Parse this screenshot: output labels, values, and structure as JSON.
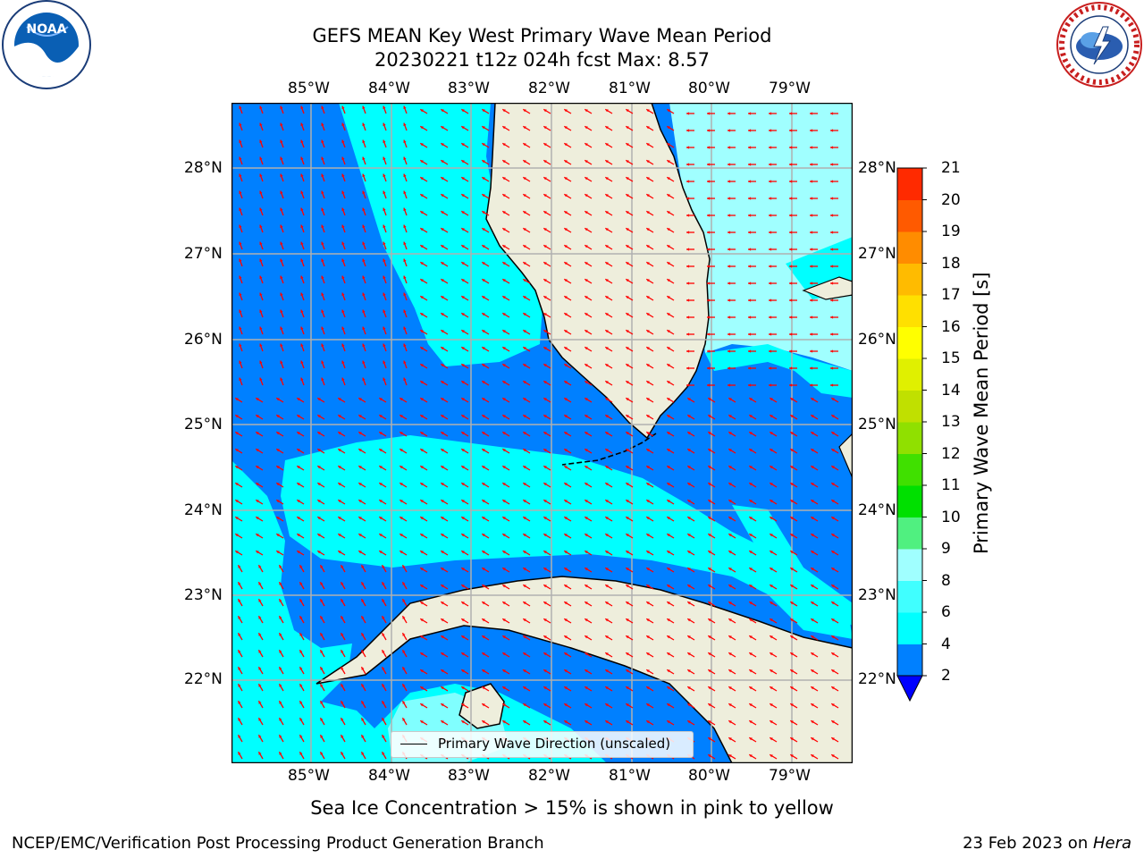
{
  "header": {
    "title_line1": "GEFS MEAN Key West Primary Wave Mean Period",
    "title_line2": "20230221 t12z 024h fcst   Max: 8.57"
  },
  "logos": {
    "noaa_text": "NOAA",
    "noaa_ring_text": "NATIONAL OCEANIC AND ATMOSPHERIC ADMINISTRATION · U.S. DEPARTMENT OF COMMERCE",
    "nws_ring_text": "NATIONAL WEATHER SERVICE"
  },
  "map": {
    "lon_ticks": [
      "85°W",
      "84°W",
      "83°W",
      "82°W",
      "81°W",
      "80°W",
      "79°W"
    ],
    "lat_ticks": [
      "28°N",
      "27°N",
      "26°N",
      "25°N",
      "24°N",
      "23°N",
      "22°N"
    ],
    "legend_label": "Primary Wave Direction (unscaled)",
    "colors": {
      "land": "#eeeedc",
      "ocean_dark": "#0080ff",
      "cyan": "#00ffff",
      "light_cyan": "#80ffff",
      "pale_cyan": "#a0ffff",
      "arrow": "#ff0000",
      "grid": "#b0b0b0"
    }
  },
  "colorbar": {
    "label": "Primary Wave Mean Period [s]",
    "levels": [
      "2",
      "4",
      "6",
      "8",
      "9",
      "10",
      "11",
      "12",
      "13",
      "14",
      "15",
      "16",
      "17",
      "18",
      "19",
      "20",
      "21"
    ],
    "colors": [
      "#0080ff",
      "#00ffff",
      "#40ffff",
      "#a0ffff",
      "#50f080",
      "#00e000",
      "#40e000",
      "#90e000",
      "#c0e000",
      "#e0f000",
      "#ffff00",
      "#ffe000",
      "#ffbb00",
      "#ff8c00",
      "#ff5a00",
      "#ff2a00",
      "#ff0000"
    ],
    "extend_color": "#0000ff"
  },
  "notes": {
    "ice": "Sea Ice Concentration > 15% is shown in pink to yellow"
  },
  "footer": {
    "left": "NCEP/EMC/Verification Post Processing Product Generation Branch",
    "right_prefix": "23 Feb 2023 on ",
    "right_machine": "Hera"
  }
}
